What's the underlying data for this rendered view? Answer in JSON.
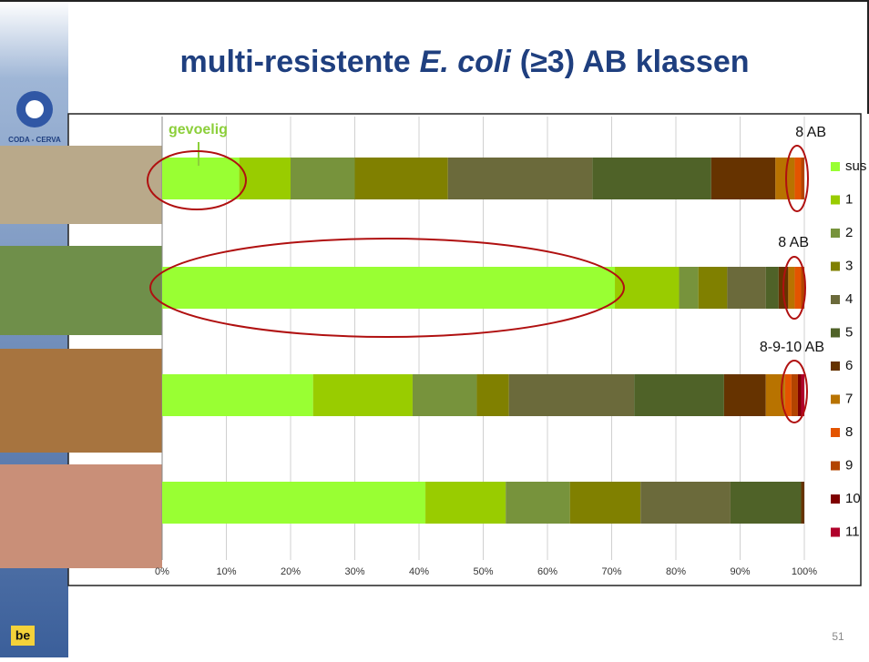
{
  "chart_data": {
    "type": "stacked-barh",
    "title_parts": [
      "multi-resistente",
      "E. coli",
      "(≥3) AB klassen"
    ],
    "categories": [
      null,
      null,
      null,
      null
    ],
    "series": [
      {
        "name": "sus",
        "color": "#99ff33",
        "values": [
          12,
          70.5,
          23.5,
          41
        ]
      },
      {
        "name": "1",
        "color": "#99cc00",
        "values": [
          8,
          10,
          15.5,
          12.5
        ]
      },
      {
        "name": "2",
        "color": "#77933c",
        "values": [
          10,
          3,
          10,
          10
        ]
      },
      {
        "name": "3",
        "color": "#808000",
        "values": [
          14.5,
          4.5,
          5,
          11
        ]
      },
      {
        "name": "4",
        "color": "#6b6a3b",
        "values": [
          22.5,
          6,
          19.5,
          14
        ]
      },
      {
        "name": "5",
        "color": "#4f6228",
        "values": [
          18.5,
          2,
          14,
          11
        ]
      },
      {
        "name": "6",
        "color": "#663300",
        "values": [
          10,
          1.5,
          6.5,
          0.5
        ]
      },
      {
        "name": "7",
        "color": "#b87300",
        "values": [
          3,
          1,
          3,
          0
        ]
      },
      {
        "name": "8",
        "color": "#e35400",
        "values": [
          1,
          1,
          1,
          0
        ]
      },
      {
        "name": "9",
        "color": "#b34400",
        "values": [
          0.5,
          0.5,
          1,
          0
        ]
      },
      {
        "name": "10",
        "color": "#7f0000",
        "values": [
          0,
          0,
          0.5,
          0
        ]
      },
      {
        "name": "11",
        "color": "#b0002a",
        "values": [
          0,
          0,
          0.5,
          0
        ]
      }
    ],
    "xlim": [
      0,
      100
    ],
    "xticks": [
      {
        "value": 0,
        "label": "0%"
      },
      {
        "value": 10,
        "label": "10%"
      },
      {
        "value": 20,
        "label": "20%"
      },
      {
        "value": 30,
        "label": "30%"
      },
      {
        "value": 40,
        "label": "40%"
      },
      {
        "value": 50,
        "label": "50%"
      },
      {
        "value": 60,
        "label": "60%"
      },
      {
        "value": 70,
        "label": "70%"
      },
      {
        "value": 80,
        "label": "80%"
      },
      {
        "value": 90,
        "label": "90%"
      },
      {
        "value": 100,
        "label": "100%"
      }
    ],
    "grid": true,
    "annotations": [
      "gevoelig",
      "8 AB",
      "8 AB",
      "8-9-10 AB"
    ]
  },
  "slide": {
    "logo": "CODA - CERVA",
    "flag": "be",
    "page_number": "51"
  }
}
